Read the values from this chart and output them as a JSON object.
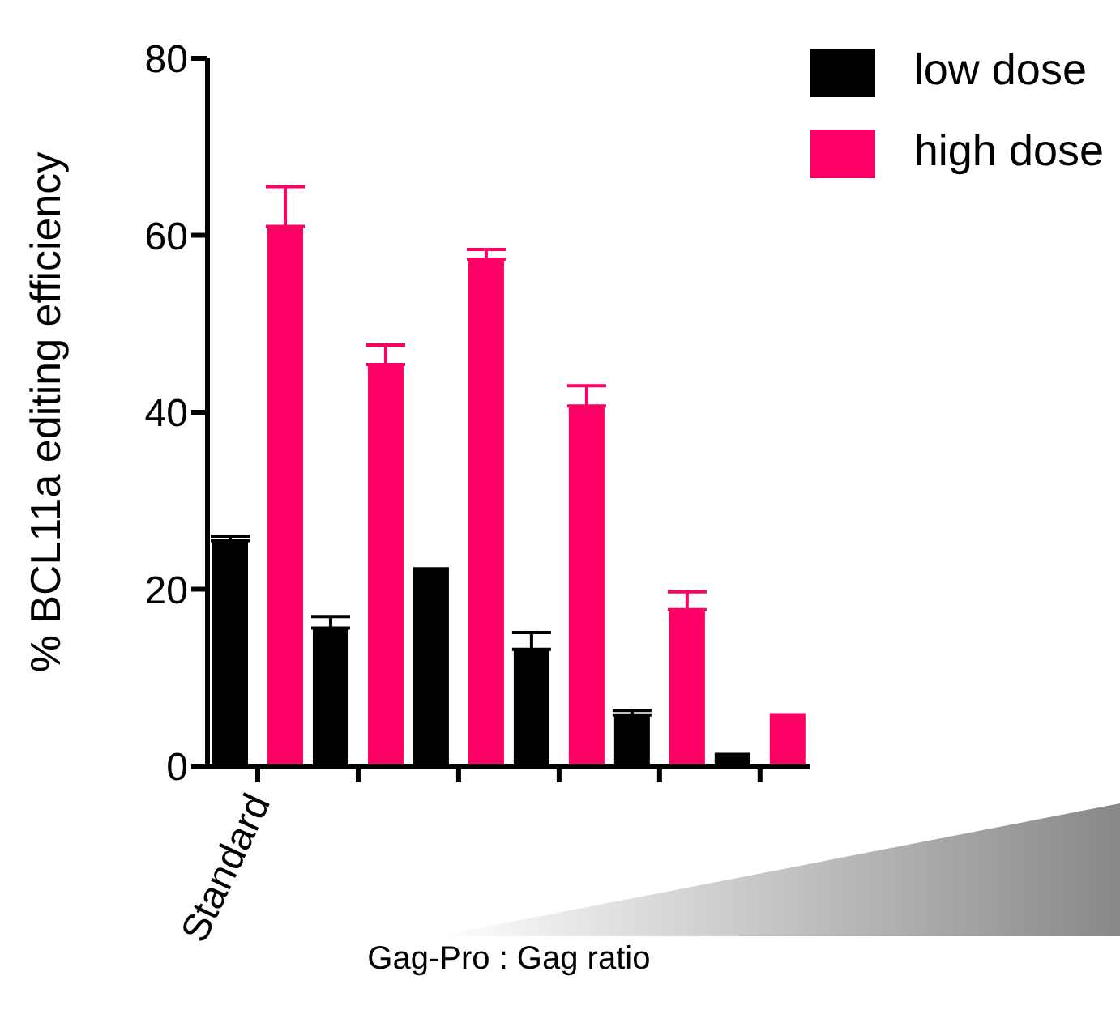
{
  "chart_data": {
    "type": "bar",
    "ylabel": "% BCL11a editing efficiency",
    "xlabel": "Gag-Pro : Gag ratio",
    "categories": [
      "Standard",
      null,
      null,
      null,
      null,
      null
    ],
    "series": [
      {
        "name": "low dose",
        "color": "#000000",
        "values": [
          25.5,
          15.6,
          22.5,
          13.2,
          5.8,
          1.5
        ],
        "errors": [
          [
            25.5,
            26
          ],
          [
            15.6,
            16.9
          ],
          null,
          [
            13.2,
            15.1
          ],
          [
            5.8,
            6.3
          ],
          null
        ]
      },
      {
        "name": "high dose",
        "color": "#ff0066",
        "values": [
          61,
          45.4,
          57.3,
          40.7,
          17.7,
          6
        ],
        "errors": [
          [
            61,
            65.5
          ],
          [
            45.4,
            47.6
          ],
          [
            57.3,
            58.4
          ],
          [
            40.7,
            43
          ],
          [
            17.7,
            19.7
          ],
          null
        ]
      }
    ],
    "ylim": [
      0,
      80
    ],
    "yticks": [
      0,
      20,
      40,
      60,
      80
    ],
    "grid": false,
    "legend": "top right"
  }
}
